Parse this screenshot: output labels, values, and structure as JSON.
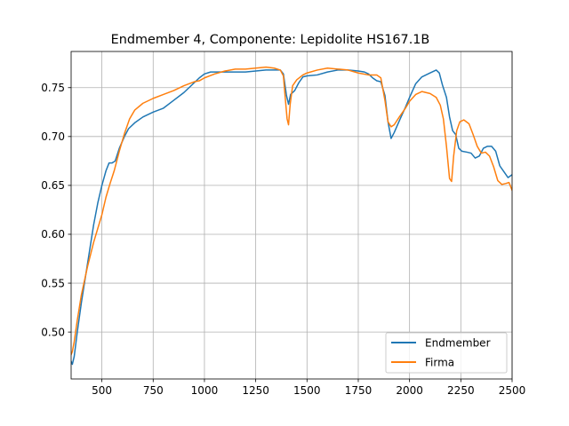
{
  "chart_data": {
    "type": "line",
    "title": "Endmember 4, Componente: Lepidolite HS167.1B",
    "xlabel": "",
    "ylabel": "",
    "xlim": [
      350,
      2500
    ],
    "ylim": [
      0.452,
      0.787
    ],
    "x_ticks": [
      500,
      750,
      1000,
      1250,
      1500,
      1750,
      2000,
      2250,
      2500
    ],
    "y_ticks": [
      0.5,
      0.55,
      0.6,
      0.65,
      0.7,
      0.75
    ],
    "x_tick_labels": [
      "500",
      "750",
      "1000",
      "1250",
      "1500",
      "1750",
      "2000",
      "2250",
      "2500"
    ],
    "y_tick_labels": [
      "0.50",
      "0.55",
      "0.60",
      "0.65",
      "0.70",
      "0.75"
    ],
    "grid": true,
    "legend_position": "lower-right",
    "series": [
      {
        "name": "Endmember",
        "color": "#1f77b4",
        "points": [
          [
            350,
            0.47
          ],
          [
            356,
            0.467
          ],
          [
            365,
            0.475
          ],
          [
            380,
            0.5
          ],
          [
            400,
            0.53
          ],
          [
            430,
            0.57
          ],
          [
            460,
            0.61
          ],
          [
            480,
            0.632
          ],
          [
            500,
            0.65
          ],
          [
            520,
            0.665
          ],
          [
            535,
            0.673
          ],
          [
            550,
            0.673
          ],
          [
            565,
            0.675
          ],
          [
            585,
            0.688
          ],
          [
            610,
            0.7
          ],
          [
            630,
            0.708
          ],
          [
            660,
            0.714
          ],
          [
            700,
            0.72
          ],
          [
            750,
            0.725
          ],
          [
            800,
            0.729
          ],
          [
            850,
            0.737
          ],
          [
            900,
            0.745
          ],
          [
            950,
            0.755
          ],
          [
            975,
            0.76
          ],
          [
            1000,
            0.764
          ],
          [
            1030,
            0.766
          ],
          [
            1100,
            0.766
          ],
          [
            1150,
            0.766
          ],
          [
            1200,
            0.766
          ],
          [
            1250,
            0.767
          ],
          [
            1300,
            0.768
          ],
          [
            1340,
            0.768
          ],
          [
            1370,
            0.768
          ],
          [
            1385,
            0.764
          ],
          [
            1400,
            0.742
          ],
          [
            1410,
            0.733
          ],
          [
            1420,
            0.743
          ],
          [
            1440,
            0.747
          ],
          [
            1460,
            0.755
          ],
          [
            1480,
            0.761
          ],
          [
            1500,
            0.762
          ],
          [
            1550,
            0.763
          ],
          [
            1600,
            0.766
          ],
          [
            1650,
            0.768
          ],
          [
            1700,
            0.768
          ],
          [
            1750,
            0.767
          ],
          [
            1780,
            0.766
          ],
          [
            1800,
            0.764
          ],
          [
            1820,
            0.76
          ],
          [
            1840,
            0.757
          ],
          [
            1860,
            0.756
          ],
          [
            1880,
            0.742
          ],
          [
            1895,
            0.715
          ],
          [
            1910,
            0.698
          ],
          [
            1925,
            0.704
          ],
          [
            1950,
            0.716
          ],
          [
            1980,
            0.73
          ],
          [
            2000,
            0.74
          ],
          [
            2030,
            0.754
          ],
          [
            2060,
            0.761
          ],
          [
            2100,
            0.765
          ],
          [
            2130,
            0.768
          ],
          [
            2145,
            0.765
          ],
          [
            2160,
            0.753
          ],
          [
            2180,
            0.74
          ],
          [
            2195,
            0.72
          ],
          [
            2210,
            0.706
          ],
          [
            2225,
            0.702
          ],
          [
            2240,
            0.688
          ],
          [
            2255,
            0.685
          ],
          [
            2280,
            0.684
          ],
          [
            2300,
            0.683
          ],
          [
            2320,
            0.678
          ],
          [
            2340,
            0.68
          ],
          [
            2360,
            0.688
          ],
          [
            2380,
            0.69
          ],
          [
            2400,
            0.69
          ],
          [
            2420,
            0.685
          ],
          [
            2440,
            0.67
          ],
          [
            2460,
            0.664
          ],
          [
            2480,
            0.658
          ],
          [
            2500,
            0.661
          ]
        ]
      },
      {
        "name": "Firma",
        "color": "#ff7f0e",
        "points": [
          [
            350,
            0.477
          ],
          [
            356,
            0.48
          ],
          [
            365,
            0.49
          ],
          [
            380,
            0.512
          ],
          [
            400,
            0.538
          ],
          [
            430,
            0.567
          ],
          [
            460,
            0.592
          ],
          [
            480,
            0.606
          ],
          [
            500,
            0.62
          ],
          [
            520,
            0.638
          ],
          [
            540,
            0.652
          ],
          [
            560,
            0.665
          ],
          [
            585,
            0.685
          ],
          [
            610,
            0.703
          ],
          [
            635,
            0.718
          ],
          [
            660,
            0.727
          ],
          [
            700,
            0.734
          ],
          [
            750,
            0.739
          ],
          [
            800,
            0.743
          ],
          [
            850,
            0.747
          ],
          [
            900,
            0.752
          ],
          [
            950,
            0.756
          ],
          [
            975,
            0.757
          ],
          [
            1000,
            0.76
          ],
          [
            1050,
            0.764
          ],
          [
            1100,
            0.767
          ],
          [
            1150,
            0.769
          ],
          [
            1200,
            0.769
          ],
          [
            1250,
            0.77
          ],
          [
            1300,
            0.771
          ],
          [
            1340,
            0.77
          ],
          [
            1370,
            0.768
          ],
          [
            1385,
            0.762
          ],
          [
            1395,
            0.737
          ],
          [
            1403,
            0.718
          ],
          [
            1410,
            0.712
          ],
          [
            1418,
            0.733
          ],
          [
            1430,
            0.752
          ],
          [
            1450,
            0.758
          ],
          [
            1480,
            0.763
          ],
          [
            1500,
            0.765
          ],
          [
            1550,
            0.768
          ],
          [
            1600,
            0.77
          ],
          [
            1650,
            0.769
          ],
          [
            1700,
            0.768
          ],
          [
            1750,
            0.765
          ],
          [
            1800,
            0.763
          ],
          [
            1840,
            0.763
          ],
          [
            1860,
            0.76
          ],
          [
            1880,
            0.737
          ],
          [
            1895,
            0.715
          ],
          [
            1910,
            0.71
          ],
          [
            1925,
            0.712
          ],
          [
            1950,
            0.72
          ],
          [
            1980,
            0.729
          ],
          [
            2000,
            0.736
          ],
          [
            2030,
            0.743
          ],
          [
            2060,
            0.746
          ],
          [
            2100,
            0.744
          ],
          [
            2130,
            0.74
          ],
          [
            2150,
            0.732
          ],
          [
            2165,
            0.718
          ],
          [
            2180,
            0.69
          ],
          [
            2195,
            0.657
          ],
          [
            2205,
            0.654
          ],
          [
            2215,
            0.68
          ],
          [
            2230,
            0.706
          ],
          [
            2245,
            0.715
          ],
          [
            2265,
            0.717
          ],
          [
            2290,
            0.713
          ],
          [
            2310,
            0.702
          ],
          [
            2330,
            0.69
          ],
          [
            2350,
            0.683
          ],
          [
            2370,
            0.684
          ],
          [
            2390,
            0.68
          ],
          [
            2410,
            0.669
          ],
          [
            2430,
            0.655
          ],
          [
            2450,
            0.651
          ],
          [
            2470,
            0.652
          ],
          [
            2485,
            0.653
          ],
          [
            2500,
            0.645
          ]
        ]
      }
    ]
  }
}
